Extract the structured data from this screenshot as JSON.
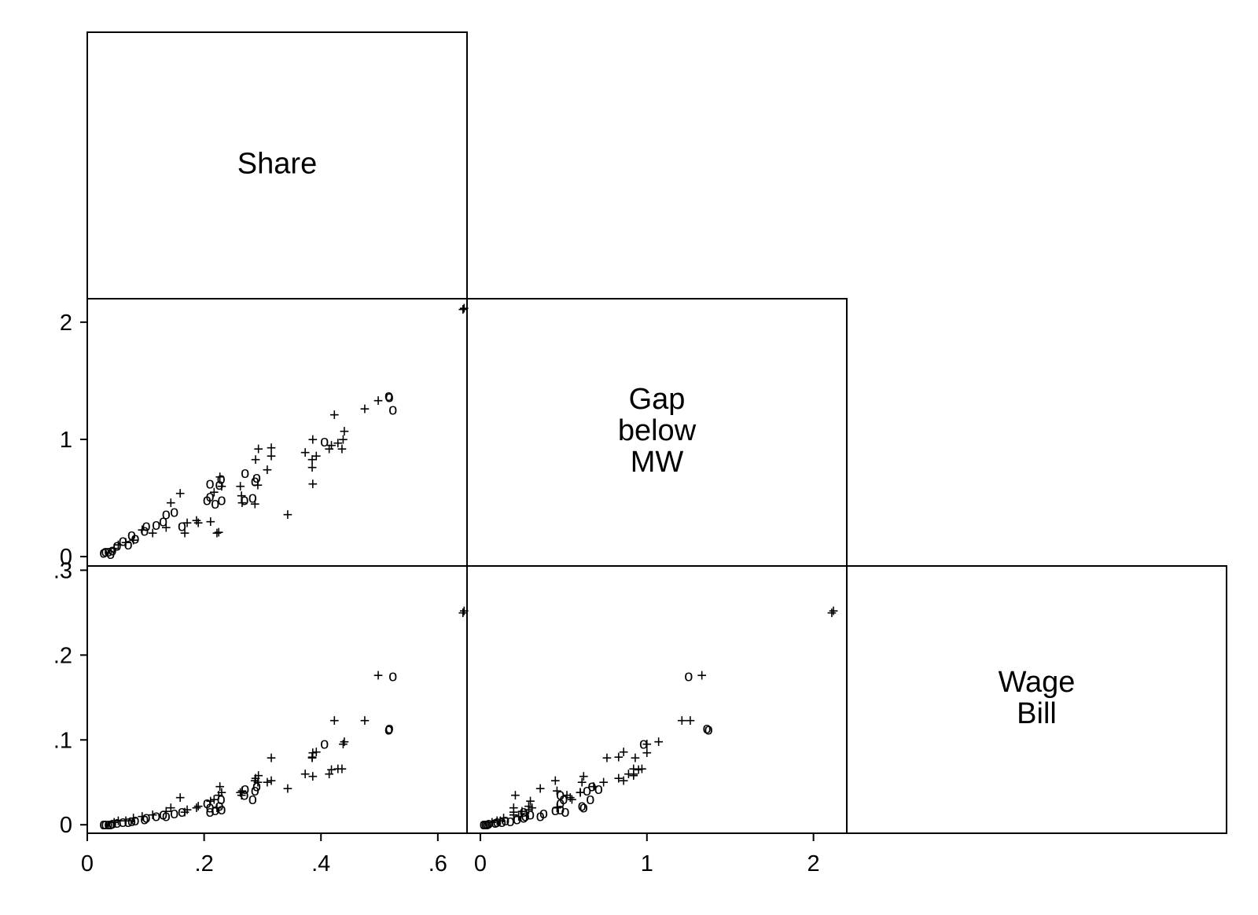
{
  "chart_data": {
    "type": "scatter",
    "subtype": "scatter-matrix-lower-half",
    "variables": [
      {
        "key": "share",
        "label": [
          "Share"
        ],
        "range": [
          0,
          0.65
        ],
        "ticks": [
          {
            "v": 0,
            "t": "0"
          },
          {
            "v": 0.2,
            "t": ".2"
          },
          {
            "v": 0.4,
            "t": ".4"
          },
          {
            "v": 0.6,
            "t": ".6"
          }
        ]
      },
      {
        "key": "gap",
        "label": [
          "Gap",
          "below",
          "MW"
        ],
        "range": [
          -0.08,
          2.2
        ],
        "ticks": [
          {
            "v": 0,
            "t": "0"
          },
          {
            "v": 1,
            "t": "1"
          },
          {
            "v": 2,
            "t": "2"
          }
        ]
      },
      {
        "key": "wage",
        "label": [
          "Wage",
          "Bill"
        ],
        "range": [
          -0.01,
          0.305
        ],
        "ticks": [
          {
            "v": 0,
            "t": "0"
          },
          {
            "v": 0.1,
            "t": ".1"
          },
          {
            "v": 0.2,
            "t": ".2"
          },
          {
            "v": 0.3,
            "t": ".3"
          }
        ]
      }
    ],
    "grid": false,
    "legend": "none",
    "marker_symbols": [
      "o",
      "+"
    ],
    "series": [
      {
        "symbol": "+",
        "points": [
          [
            0.645,
            2.12,
            0.252
          ],
          [
            0.643,
            2.11,
            0.25
          ],
          [
            0.498,
            1.33,
            0.176
          ],
          [
            0.475,
            1.26,
            0.123
          ],
          [
            0.423,
            1.21,
            0.123
          ],
          [
            0.44,
            1.07,
            0.098
          ],
          [
            0.438,
            1.0,
            0.095
          ],
          [
            0.436,
            0.92,
            0.066
          ],
          [
            0.429,
            0.97,
            0.066
          ],
          [
            0.418,
            0.95,
            0.065
          ],
          [
            0.414,
            0.92,
            0.06
          ],
          [
            0.386,
            1.0,
            0.085
          ],
          [
            0.385,
            0.83,
            0.08
          ],
          [
            0.392,
            0.86,
            0.086
          ],
          [
            0.373,
            0.89,
            0.06
          ],
          [
            0.386,
            0.62,
            0.057
          ],
          [
            0.385,
            0.76,
            0.079
          ],
          [
            0.343,
            0.36,
            0.043
          ],
          [
            0.315,
            0.93,
            0.079
          ],
          [
            0.315,
            0.86,
            0.052
          ],
          [
            0.308,
            0.74,
            0.05
          ],
          [
            0.293,
            0.92,
            0.058
          ],
          [
            0.288,
            0.83,
            0.055
          ],
          [
            0.292,
            0.61,
            0.05
          ],
          [
            0.287,
            0.45,
            0.052
          ],
          [
            0.262,
            0.6,
            0.038
          ],
          [
            0.264,
            0.52,
            0.035
          ],
          [
            0.265,
            0.46,
            0.04
          ],
          [
            0.225,
            0.21,
            0.035
          ],
          [
            0.222,
            0.2,
            0.02
          ],
          [
            0.227,
            0.68,
            0.045
          ],
          [
            0.23,
            0.6,
            0.038
          ],
          [
            0.217,
            0.55,
            0.03
          ],
          [
            0.211,
            0.3,
            0.028
          ],
          [
            0.19,
            0.29,
            0.022
          ],
          [
            0.187,
            0.31,
            0.02
          ],
          [
            0.159,
            0.54,
            0.032
          ],
          [
            0.143,
            0.46,
            0.02
          ],
          [
            0.167,
            0.2,
            0.015
          ],
          [
            0.171,
            0.29,
            0.018
          ],
          [
            0.135,
            0.25,
            0.016
          ],
          [
            0.112,
            0.2,
            0.012
          ],
          [
            0.094,
            0.23,
            0.01
          ],
          [
            0.079,
            0.14,
            0.008
          ],
          [
            0.066,
            0.12,
            0.005
          ],
          [
            0.053,
            0.1,
            0.005
          ],
          [
            0.046,
            0.07,
            0.003
          ]
        ]
      },
      {
        "symbol": "o",
        "points": [
          [
            0.523,
            1.25,
            0.175
          ],
          [
            0.517,
            1.36,
            0.113
          ],
          [
            0.516,
            1.37,
            0.112
          ],
          [
            0.406,
            0.98,
            0.095
          ],
          [
            0.29,
            0.67,
            0.045
          ],
          [
            0.287,
            0.64,
            0.04
          ],
          [
            0.283,
            0.5,
            0.03
          ],
          [
            0.27,
            0.71,
            0.042
          ],
          [
            0.269,
            0.48,
            0.035
          ],
          [
            0.229,
            0.66,
            0.03
          ],
          [
            0.23,
            0.48,
            0.018
          ],
          [
            0.226,
            0.61,
            0.022
          ],
          [
            0.219,
            0.45,
            0.017
          ],
          [
            0.21,
            0.62,
            0.02
          ],
          [
            0.205,
            0.48,
            0.025
          ],
          [
            0.21,
            0.51,
            0.015
          ],
          [
            0.162,
            0.26,
            0.015
          ],
          [
            0.149,
            0.38,
            0.013
          ],
          [
            0.135,
            0.36,
            0.01
          ],
          [
            0.13,
            0.3,
            0.012
          ],
          [
            0.118,
            0.27,
            0.01
          ],
          [
            0.101,
            0.26,
            0.008
          ],
          [
            0.098,
            0.22,
            0.006
          ],
          [
            0.082,
            0.15,
            0.005
          ],
          [
            0.076,
            0.18,
            0.004
          ],
          [
            0.07,
            0.1,
            0.003
          ],
          [
            0.061,
            0.13,
            0.003
          ],
          [
            0.051,
            0.09,
            0.002
          ],
          [
            0.043,
            0.05,
            0.001
          ],
          [
            0.036,
            0.04,
            0.0
          ],
          [
            0.031,
            0.04,
            0.0
          ],
          [
            0.028,
            0.03,
            0.0
          ],
          [
            0.04,
            0.02,
            0.0
          ]
        ]
      }
    ]
  }
}
